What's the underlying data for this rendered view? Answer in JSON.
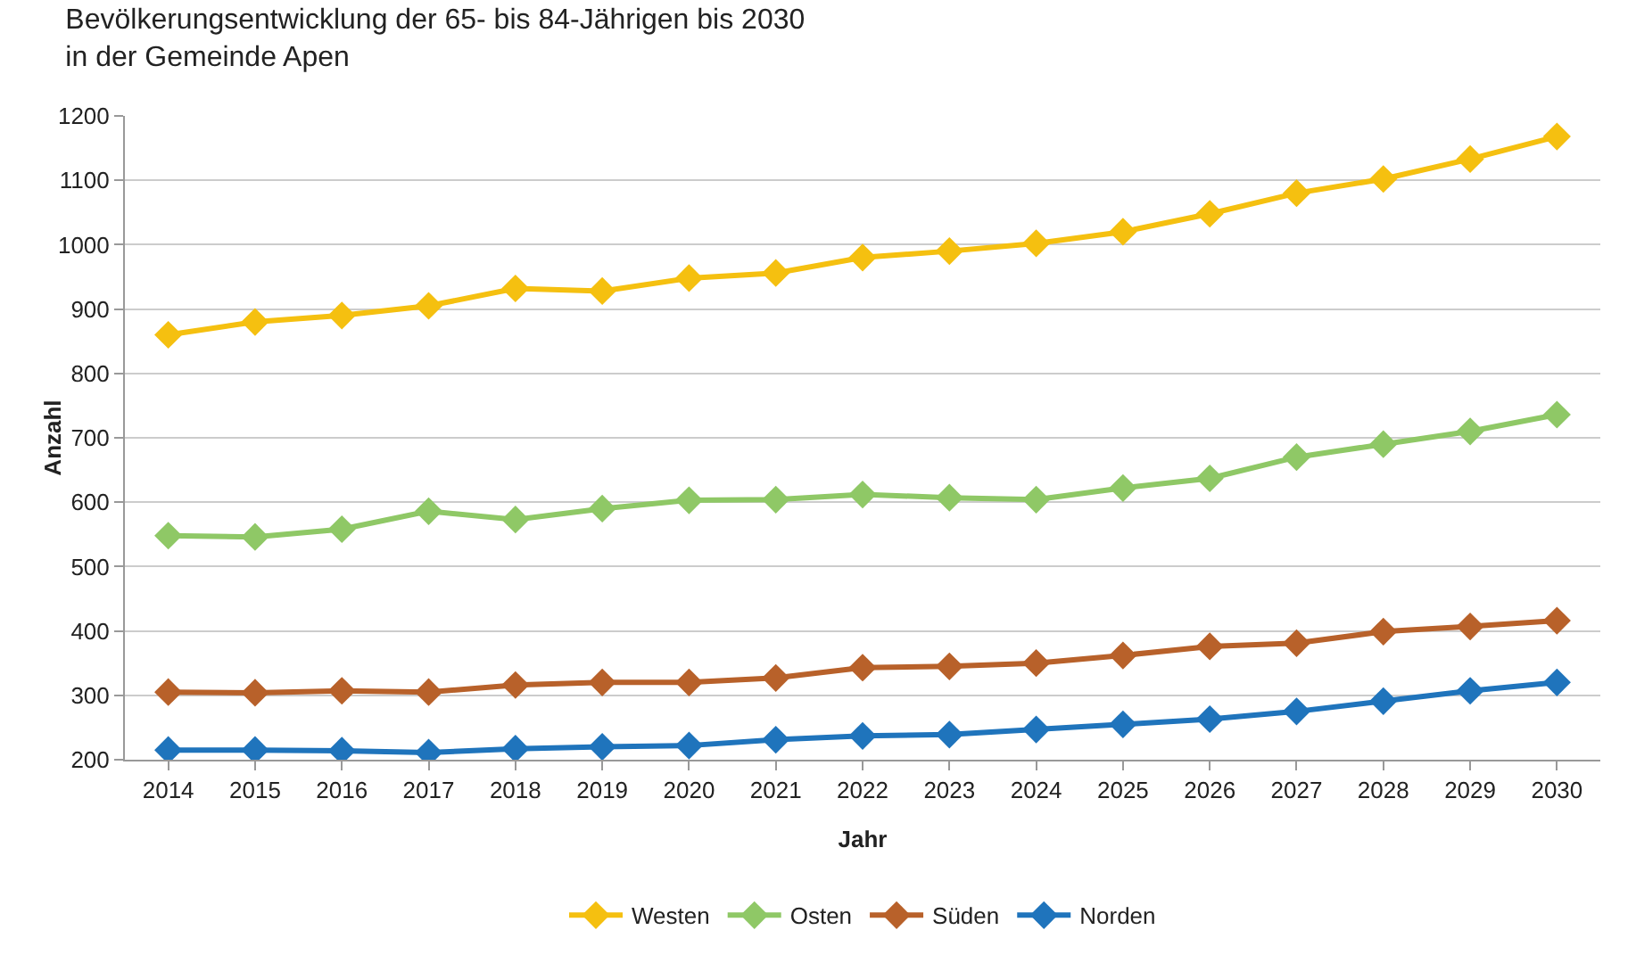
{
  "chart_data": {
    "type": "line",
    "title": "Bevölkerungsentwicklung der 65- bis 84-Jährigen bis 2030\nin der Gemeinde Apen",
    "xlabel": "Jahr",
    "ylabel": "Anzahl",
    "categories": [
      "2014",
      "2015",
      "2016",
      "2017",
      "2018",
      "2019",
      "2020",
      "2021",
      "2022",
      "2023",
      "2024",
      "2025",
      "2026",
      "2027",
      "2028",
      "2029",
      "2030"
    ],
    "series": [
      {
        "name": "Westen",
        "color": "#f5c010",
        "values": [
          860,
          880,
          890,
          905,
          932,
          928,
          948,
          956,
          980,
          990,
          1002,
          1020,
          1048,
          1080,
          1102,
          1133,
          1168
        ]
      },
      {
        "name": "Osten",
        "color": "#8fc866",
        "values": [
          548,
          546,
          558,
          586,
          573,
          590,
          603,
          604,
          612,
          607,
          604,
          622,
          637,
          670,
          690,
          710,
          736
        ]
      },
      {
        "name": "Süden",
        "color": "#b8612a",
        "values": [
          305,
          304,
          307,
          305,
          316,
          320,
          320,
          327,
          343,
          345,
          350,
          362,
          376,
          381,
          399,
          407,
          416
        ]
      },
      {
        "name": "Norden",
        "color": "#1f74bc",
        "values": [
          215,
          215,
          214,
          211,
          217,
          220,
          222,
          231,
          237,
          239,
          247,
          255,
          263,
          275,
          291,
          307,
          320
        ]
      }
    ],
    "ylim": [
      200,
      1200
    ],
    "yticks": [
      200,
      300,
      400,
      500,
      600,
      700,
      800,
      900,
      1000,
      1100,
      1200
    ],
    "grid": "y",
    "legend": "bottom",
    "marker": "diamond",
    "line_style": "solid"
  }
}
